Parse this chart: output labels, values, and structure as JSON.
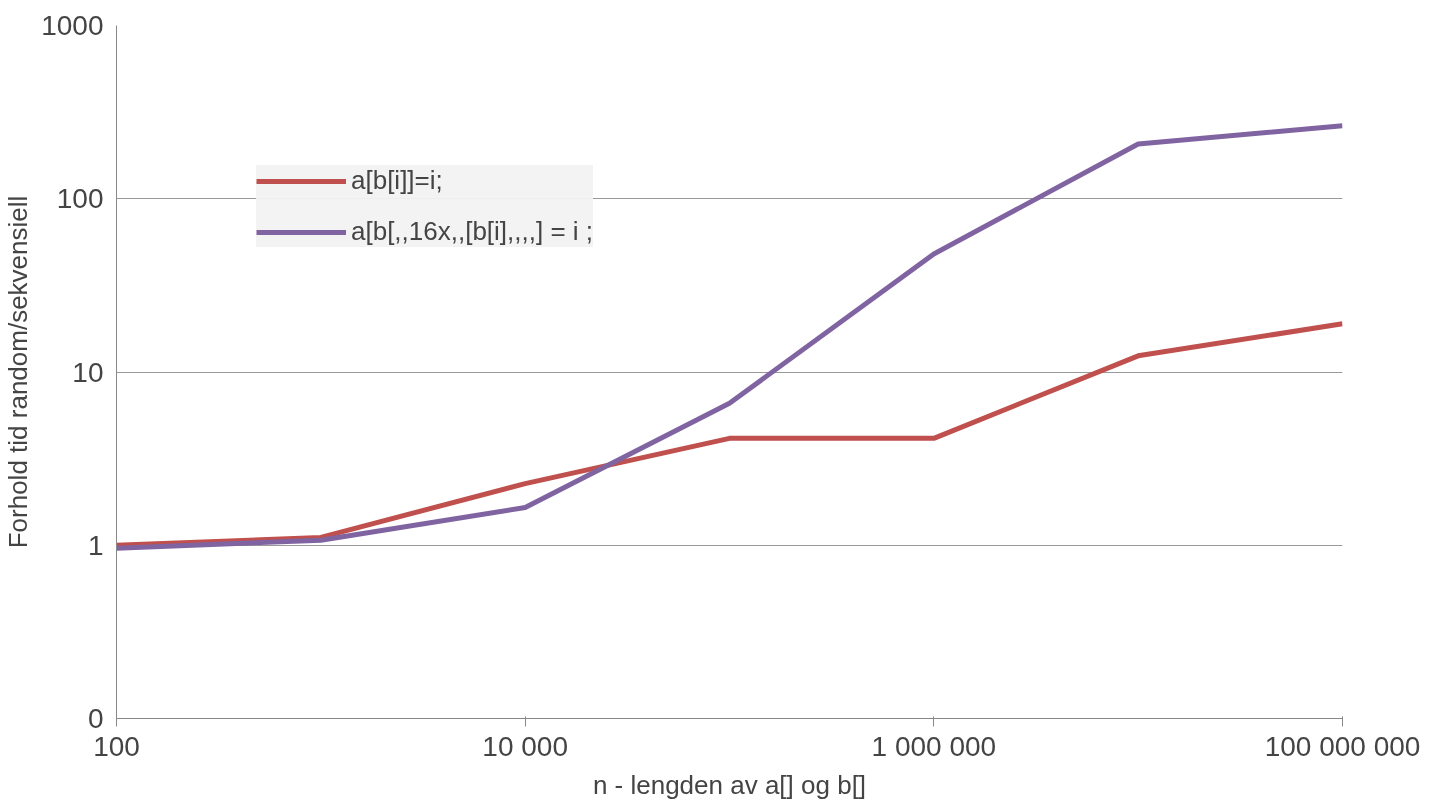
{
  "chart_data": {
    "type": "line",
    "xlabel": "n - lengden av a[] og b[]",
    "ylabel": "Forhold tid random/sekvensiell",
    "x": [
      100,
      1000,
      10000,
      100000,
      1000000,
      10000000,
      100000000
    ],
    "series": [
      {
        "name": "a[b[i]]=i;",
        "color": "#c0504d",
        "values": [
          1.0,
          1.11,
          2.27,
          4.14,
          4.14,
          12.4,
          19.0
        ]
      },
      {
        "name": "a[b[,,16x,,[b[i],,,,] = i ;",
        "color": "#8064a2",
        "values": [
          0.96,
          1.07,
          1.65,
          6.6,
          48,
          207,
          264
        ]
      }
    ],
    "log": "xy",
    "xlim": [
      100,
      100000000
    ],
    "ylim": [
      0.1,
      1000
    ],
    "xticks": [
      100,
      {
        "value": 10000,
        "label": "10 000"
      },
      {
        "value": 1000000,
        "label": "1 000 000"
      },
      {
        "value": 100000000,
        "label": "100 000 000"
      }
    ],
    "yticks": [
      {
        "value": 0.1,
        "label": "0"
      },
      1,
      10,
      100,
      1000
    ],
    "grid": "y",
    "legend": "top left",
    "line_style": "solid",
    "marker": "none"
  }
}
